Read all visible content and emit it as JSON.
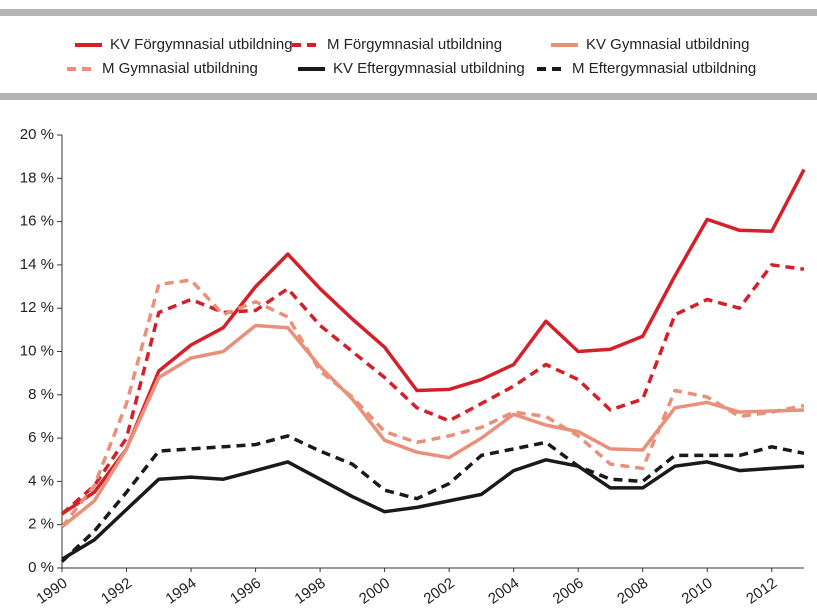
{
  "chart_data": {
    "type": "line",
    "x": [
      1990,
      1991,
      1992,
      1993,
      1994,
      1995,
      1996,
      1997,
      1998,
      1999,
      2000,
      2001,
      2002,
      2003,
      2004,
      2005,
      2006,
      2007,
      2008,
      2009,
      2010,
      2011,
      2012,
      2013
    ],
    "xlim": [
      1990,
      2013
    ],
    "xticks": [
      1990,
      1992,
      1994,
      1996,
      1998,
      2000,
      2002,
      2004,
      2006,
      2008,
      2010,
      2012
    ],
    "ylim": [
      0,
      20
    ],
    "yticks": [
      {
        "value": 0,
        "label": "0 %"
      },
      {
        "value": 2,
        "label": "2 %"
      },
      {
        "value": 4,
        "label": "4 %"
      },
      {
        "value": 6,
        "label": "6 %"
      },
      {
        "value": 8,
        "label": "8 %"
      },
      {
        "value": 10,
        "label": "10 %"
      },
      {
        "value": 12,
        "label": "12 %"
      },
      {
        "value": 14,
        "label": "14 %"
      },
      {
        "value": 16,
        "label": "16 %"
      },
      {
        "value": 18,
        "label": "18 %"
      },
      {
        "value": 20,
        "label": "20 %"
      }
    ],
    "grid": false,
    "series": [
      {
        "name": "KV Förgymnasial utbildning",
        "color": "#d42028",
        "style": "solid",
        "values": [
          2.5,
          3.5,
          5.5,
          9.1,
          10.3,
          11.1,
          13.0,
          14.5,
          12.9,
          11.5,
          10.2,
          8.2,
          8.25,
          8.7,
          9.4,
          11.4,
          10.0,
          10.1,
          10.7,
          13.5,
          16.1,
          15.6,
          15.55,
          18.4
        ]
      },
      {
        "name": "M Förgymnasial utbildning",
        "color": "#d42028",
        "style": "dashed",
        "values": [
          2.5,
          3.8,
          6.0,
          11.8,
          12.4,
          11.8,
          11.9,
          12.9,
          11.2,
          10.0,
          8.8,
          7.4,
          6.8,
          7.6,
          8.4,
          9.4,
          8.7,
          7.3,
          7.8,
          11.7,
          12.4,
          12.0,
          14.0,
          13.8
        ]
      },
      {
        "name": "KV Gymnasial utbildning",
        "color": "#e8907a",
        "style": "solid",
        "values": [
          1.9,
          3.1,
          5.5,
          8.8,
          9.7,
          10.0,
          11.2,
          11.1,
          9.3,
          7.8,
          5.9,
          5.35,
          5.1,
          6.0,
          7.1,
          6.6,
          6.3,
          5.5,
          5.45,
          7.4,
          7.65,
          7.2,
          7.25,
          7.3
        ]
      },
      {
        "name": "M Gymnasial utbildning",
        "color": "#e8907a",
        "style": "dashed",
        "values": [
          1.9,
          3.8,
          7.6,
          13.1,
          13.3,
          11.7,
          12.3,
          11.6,
          9.1,
          7.9,
          6.3,
          5.8,
          6.1,
          6.5,
          7.2,
          7.0,
          6.1,
          4.8,
          4.6,
          8.2,
          7.9,
          7.0,
          7.2,
          7.5
        ]
      },
      {
        "name": "KV Eftergymnasial utbildning",
        "color": "#1a1a1a",
        "style": "solid",
        "values": [
          0.4,
          1.3,
          2.7,
          4.1,
          4.2,
          4.1,
          4.5,
          4.9,
          4.1,
          3.3,
          2.6,
          2.8,
          3.1,
          3.4,
          4.5,
          5.0,
          4.7,
          3.7,
          3.7,
          4.7,
          4.9,
          4.5,
          4.6,
          4.7
        ]
      },
      {
        "name": "M Eftergymnasial utbildning",
        "color": "#1a1a1a",
        "style": "dashed",
        "values": [
          0.3,
          1.7,
          3.5,
          5.4,
          5.5,
          5.6,
          5.7,
          6.1,
          5.4,
          4.8,
          3.6,
          3.2,
          3.9,
          5.2,
          5.5,
          5.8,
          4.7,
          4.1,
          4.0,
          5.2,
          5.2,
          5.2,
          5.6,
          5.3
        ]
      }
    ]
  }
}
